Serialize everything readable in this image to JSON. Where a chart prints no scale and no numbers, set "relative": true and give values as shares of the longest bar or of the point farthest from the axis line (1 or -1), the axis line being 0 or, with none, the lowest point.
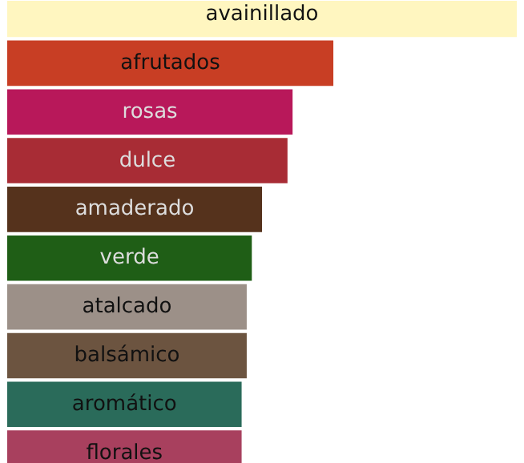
{
  "chart_data": {
    "type": "bar",
    "orientation": "horizontal",
    "relative": true,
    "data_labels": false,
    "categories": [
      "avainillado",
      "afrutados",
      "rosas",
      "dulce",
      "amaderado",
      "verde",
      "atalcado",
      "balsámico",
      "aromático",
      "florales"
    ],
    "values": [
      1,
      0.64,
      0.56,
      0.55,
      0.5,
      0.48,
      0.47,
      0.47,
      0.46,
      0.46
    ],
    "colors": [
      "#fff6c0",
      "#c83e24",
      "#b8185a",
      "#a82c35",
      "#55321c",
      "#1f5e16",
      "#9c9088",
      "#6c5440",
      "#2a6b5a",
      "#a8405e"
    ],
    "grid": false
  }
}
